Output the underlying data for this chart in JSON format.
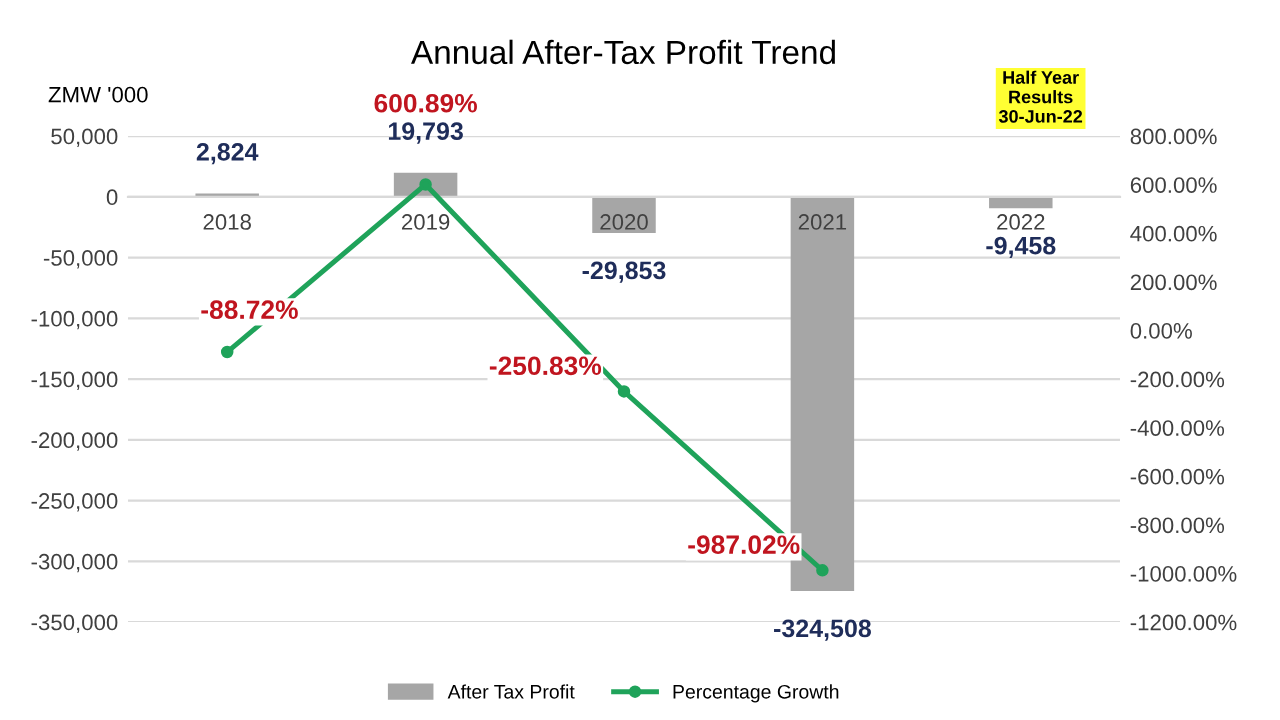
{
  "chart_data": {
    "type": "bar",
    "title": "Annual After-Tax Profit Trend",
    "ylabel": "ZMW '000",
    "categories": [
      "2018",
      "2019",
      "2020",
      "2021",
      "2022"
    ],
    "series": [
      {
        "name": "After Tax Profit",
        "color": "#a6a6a6",
        "values": [
          2824,
          19793,
          -29853,
          -324508,
          -9458
        ],
        "value_labels": [
          "2,824",
          "19,793",
          "-29,853",
          "-324,508",
          "-9,458"
        ]
      },
      {
        "name": "Percentage Growth",
        "type": "line",
        "axis": "y2",
        "color": "#1fa35a",
        "values": [
          -88.72,
          600.89,
          -250.83,
          -987.02,
          null
        ],
        "value_labels": [
          "-88.72%",
          "600.89%",
          "-250.83%",
          "-987.02%",
          null
        ]
      }
    ],
    "ylim": [
      -350000,
      50000
    ],
    "yticks": [
      {
        "value": -350000,
        "label": "-350,000"
      },
      {
        "value": -300000,
        "label": "-300,000"
      },
      {
        "value": -250000,
        "label": "-250,000"
      },
      {
        "value": -200000,
        "label": "-200,000"
      },
      {
        "value": -150000,
        "label": "-150,000"
      },
      {
        "value": -100000,
        "label": "-100,000"
      },
      {
        "value": -50000,
        "label": "-50,000"
      },
      0,
      {
        "value": 50000,
        "label": "50,000"
      }
    ],
    "y2lim": [
      -1200,
      800
    ],
    "y2ticks": [
      {
        "value": -1200,
        "label": "-1200.00%"
      },
      {
        "value": -1000,
        "label": "-1000.00%"
      },
      {
        "value": -800,
        "label": "-800.00%"
      },
      {
        "value": -600,
        "label": "-600.00%"
      },
      {
        "value": -400,
        "label": "-400.00%"
      },
      {
        "value": -200,
        "label": "-200.00%"
      },
      {
        "value": 0,
        "label": "0.00%"
      },
      {
        "value": 200,
        "label": "200.00%"
      },
      {
        "value": 400,
        "label": "400.00%"
      },
      {
        "value": 600,
        "label": "600.00%"
      },
      {
        "value": 800,
        "label": "800.00%"
      }
    ],
    "annotations": [
      "Half Year\nResults\n30-Jun-22"
    ],
    "grid": "y",
    "legend": "bottom",
    "marker": "circle",
    "line_style": "solid"
  }
}
